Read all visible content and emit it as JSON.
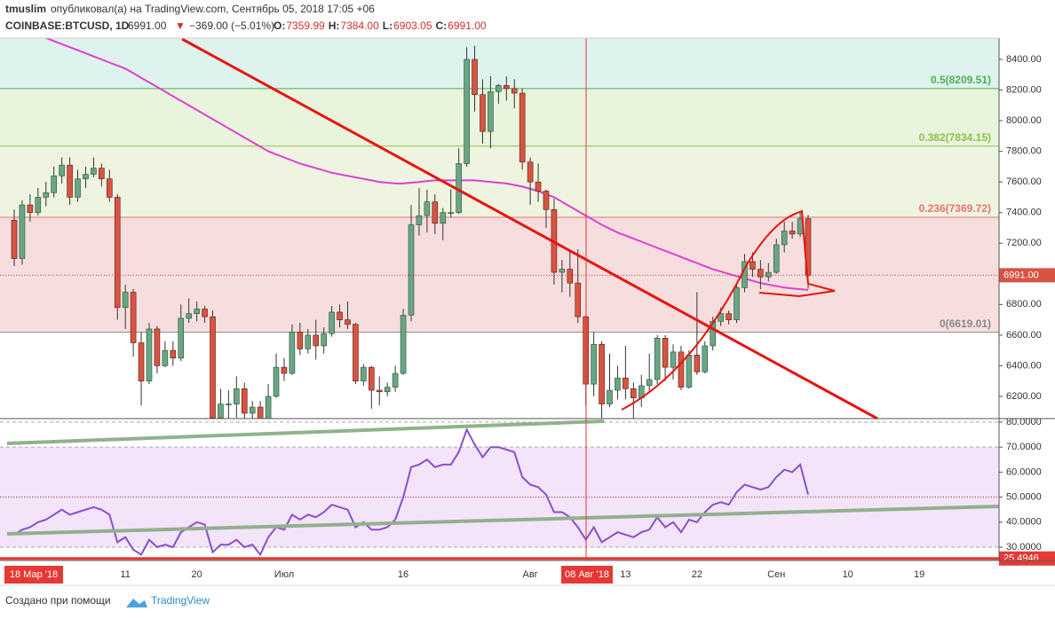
{
  "header": {
    "user": "tmuslim",
    "published": "опубликовал(а) на TradingView.com, Сентябрь 05, 2018 17:05 +06",
    "symbol": "COINBASE:BTCUSD, 1D",
    "last": "6991.00",
    "arrow": "▼",
    "change": "−369.00 (−5.01%)",
    "ohlc": [
      {
        "k": "O:",
        "v": "7359.99"
      },
      {
        "k": "H:",
        "v": "7384.00"
      },
      {
        "k": "L:",
        "v": "6903.05"
      },
      {
        "k": "C:",
        "v": "6991.00"
      }
    ]
  },
  "crosshair": {
    "left": "18 Мар '18",
    "date": "08 Авг '18"
  },
  "footer": {
    "text": "Создано при помощи",
    "brand": "TradingView"
  },
  "chart_data": [
    {
      "type": "candlestick",
      "up_color": "#6ba583",
      "down_color": "#d75442",
      "ma_color": "#e040d0",
      "ylim": [
        6055,
        8539
      ],
      "yticks": [
        {
          "value": 6200,
          "label": "6200.00"
        },
        {
          "value": 6400,
          "label": "6400.00"
        },
        {
          "value": 6600,
          "label": "6600.00"
        },
        {
          "value": 6800,
          "label": "6800.00"
        },
        {
          "value": 7000,
          "label": "7000.00"
        },
        {
          "value": 7200,
          "label": "7200.00"
        },
        {
          "value": 7400,
          "label": "7400.00"
        },
        {
          "value": 7600,
          "label": "7600.00"
        },
        {
          "value": 7800,
          "label": "7800.00"
        },
        {
          "value": 8000,
          "label": "8000.00"
        },
        {
          "value": 8200,
          "label": "8200.00"
        },
        {
          "value": 8400,
          "label": "8400.00"
        }
      ],
      "last_price": {
        "value": 6991,
        "label": "6991.00"
      },
      "fib": [
        {
          "value": 8209.51,
          "label": "0.5(8209.51)",
          "color": "#4caf50",
          "fill": "#e2f4e4"
        },
        {
          "value": 7834.15,
          "label": "0.382(7834.15)",
          "color": "#8bc34a",
          "fill": "#e9f4dc"
        },
        {
          "value": 7369.72,
          "label": "0.236(7369.72)",
          "color": "#e57373",
          "fill": "#eef4df"
        },
        {
          "value": 6619.01,
          "label": "0(6619.01)",
          "color": "#888888",
          "fill": "#f7dede"
        }
      ],
      "categories": [
        null,
        null,
        null,
        null,
        null,
        null,
        null,
        null,
        null,
        null,
        null,
        null,
        null,
        null,
        "11",
        null,
        null,
        null,
        null,
        null,
        null,
        null,
        null,
        "20",
        null,
        null,
        null,
        null,
        null,
        null,
        null,
        null,
        null,
        null,
        "Июл",
        null,
        null,
        null,
        null,
        null,
        null,
        null,
        null,
        null,
        null,
        null,
        null,
        null,
        null,
        "16",
        null,
        null,
        null,
        null,
        null,
        null,
        null,
        null,
        null,
        null,
        null,
        null,
        null,
        null,
        null,
        "Авг",
        null,
        null,
        null,
        null,
        null,
        null,
        null,
        null,
        null,
        null,
        null,
        "13",
        null,
        null,
        null,
        null,
        null,
        null,
        null,
        null,
        "22",
        null,
        null,
        null,
        null,
        null,
        null,
        null,
        null,
        null,
        "Сен",
        null,
        null,
        null,
        null,
        null,
        null,
        null,
        null,
        "10",
        null,
        null,
        null,
        null,
        null,
        null,
        null,
        null,
        "19",
        null,
        null,
        null,
        null,
        null,
        null,
        null,
        null,
        null
      ],
      "ohlc": [
        [
          7350,
          7420,
          7050,
          7100
        ],
        [
          7100,
          7480,
          7060,
          7450
        ],
        [
          7450,
          7520,
          7340,
          7400
        ],
        [
          7400,
          7560,
          7380,
          7500
        ],
        [
          7500,
          7600,
          7440,
          7530
        ],
        [
          7530,
          7700,
          7500,
          7640
        ],
        [
          7640,
          7760,
          7590,
          7710
        ],
        [
          7710,
          7760,
          7450,
          7500
        ],
        [
          7500,
          7680,
          7470,
          7620
        ],
        [
          7620,
          7700,
          7560,
          7650
        ],
        [
          7650,
          7760,
          7630,
          7690
        ],
        [
          7690,
          7720,
          7570,
          7620
        ],
        [
          7620,
          7680,
          7470,
          7500
        ],
        [
          7500,
          7520,
          6700,
          6780
        ],
        [
          6780,
          6930,
          6640,
          6880
        ],
        [
          6880,
          6900,
          6460,
          6550
        ],
        [
          6550,
          6620,
          6140,
          6300
        ],
        [
          6300,
          6680,
          6280,
          6640
        ],
        [
          6640,
          6660,
          6350,
          6400
        ],
        [
          6400,
          6560,
          6390,
          6500
        ],
        [
          6500,
          6560,
          6400,
          6450
        ],
        [
          6450,
          6800,
          6430,
          6710
        ],
        [
          6710,
          6840,
          6680,
          6740
        ],
        [
          6740,
          6820,
          6690,
          6770
        ],
        [
          6770,
          6790,
          6680,
          6720
        ],
        [
          6720,
          6760,
          5920,
          6060
        ],
        [
          6060,
          6250,
          6030,
          6150
        ],
        [
          6150,
          6240,
          5800,
          6150
        ],
        [
          6150,
          6330,
          6060,
          6250
        ],
        [
          6250,
          6290,
          6050,
          6090
        ],
        [
          6090,
          6170,
          5990,
          6130
        ],
        [
          6130,
          6170,
          5830,
          5880
        ],
        [
          5880,
          6280,
          5860,
          6200
        ],
        [
          6200,
          6480,
          6190,
          6390
        ],
        [
          6390,
          6450,
          6300,
          6350
        ],
        [
          6350,
          6670,
          6340,
          6620
        ],
        [
          6620,
          6680,
          6470,
          6510
        ],
        [
          6510,
          6640,
          6480,
          6600
        ],
        [
          6600,
          6700,
          6440,
          6530
        ],
        [
          6530,
          6650,
          6480,
          6610
        ],
        [
          6610,
          6790,
          6590,
          6750
        ],
        [
          6750,
          6800,
          6650,
          6700
        ],
        [
          6700,
          6820,
          6640,
          6670
        ],
        [
          6670,
          6680,
          6280,
          6300
        ],
        [
          6300,
          6410,
          6270,
          6390
        ],
        [
          6390,
          6400,
          6120,
          6240
        ],
        [
          6240,
          6330,
          6140,
          6230
        ],
        [
          6230,
          6290,
          6200,
          6260
        ],
        [
          6260,
          6400,
          6230,
          6350
        ],
        [
          6350,
          6770,
          6340,
          6730
        ],
        [
          6730,
          7450,
          6690,
          7320
        ],
        [
          7320,
          7560,
          7250,
          7380
        ],
        [
          7380,
          7550,
          7270,
          7470
        ],
        [
          7470,
          7520,
          7260,
          7330
        ],
        [
          7330,
          7430,
          7220,
          7400
        ],
        [
          7400,
          7550,
          7370,
          7400
        ],
        [
          7400,
          7820,
          7390,
          7720
        ],
        [
          7720,
          8480,
          7700,
          8400
        ],
        [
          8400,
          8490,
          8060,
          8170
        ],
        [
          8170,
          8270,
          7850,
          7930
        ],
        [
          7930,
          8290,
          7820,
          8190
        ],
        [
          8190,
          8240,
          8110,
          8230
        ],
        [
          8230,
          8290,
          8130,
          8210
        ],
        [
          8210,
          8270,
          8080,
          8180
        ],
        [
          8180,
          8210,
          7680,
          7730
        ],
        [
          7730,
          7760,
          7450,
          7600
        ],
        [
          7600,
          7720,
          7470,
          7540
        ],
        [
          7540,
          7550,
          7300,
          7420
        ],
        [
          7420,
          7490,
          6930,
          7010
        ],
        [
          7010,
          7090,
          6880,
          7030
        ],
        [
          7030,
          7150,
          6850,
          6940
        ],
        [
          6940,
          7160,
          6680,
          6720
        ],
        [
          6720,
          6730,
          6140,
          6280
        ],
        [
          6280,
          6620,
          6200,
          6540
        ],
        [
          6540,
          6560,
          6030,
          6150
        ],
        [
          6150,
          6480,
          6130,
          6240
        ],
        [
          6240,
          6400,
          6180,
          6320
        ],
        [
          6320,
          6530,
          6180,
          6250
        ],
        [
          6250,
          6290,
          5880,
          6190
        ],
        [
          6190,
          6340,
          6130,
          6270
        ],
        [
          6270,
          6480,
          6220,
          6310
        ],
        [
          6310,
          6600,
          6280,
          6580
        ],
        [
          6580,
          6600,
          6300,
          6390
        ],
        [
          6390,
          6540,
          6310,
          6490
        ],
        [
          6490,
          6530,
          6240,
          6260
        ],
        [
          6260,
          6500,
          6250,
          6470
        ],
        [
          6470,
          6880,
          6340,
          6360
        ],
        [
          6360,
          6560,
          6350,
          6530
        ],
        [
          6530,
          6720,
          6500,
          6690
        ],
        [
          6690,
          6780,
          6660,
          6740
        ],
        [
          6740,
          6760,
          6670,
          6700
        ],
        [
          6700,
          6940,
          6680,
          6910
        ],
        [
          6910,
          7130,
          6880,
          7080
        ],
        [
          7080,
          7140,
          6980,
          7030
        ],
        [
          7030,
          7090,
          6900,
          6980
        ],
        [
          6980,
          7070,
          6950,
          7010
        ],
        [
          7010,
          7230,
          7000,
          7190
        ],
        [
          7190,
          7340,
          7140,
          7280
        ],
        [
          7280,
          7340,
          7230,
          7260
        ],
        [
          7260,
          7410,
          7240,
          7360
        ],
        [
          7359.99,
          7384,
          6903.05,
          6991
        ],
        null,
        null,
        null,
        null,
        null,
        null,
        null,
        null,
        null,
        null,
        null,
        null,
        null,
        null,
        null,
        null,
        null,
        null,
        null,
        null,
        null,
        null,
        null
      ],
      "ma": [
        8620,
        8600,
        8580,
        8560,
        8540,
        8520,
        8500,
        8480,
        8460,
        8440,
        8420,
        8400,
        8380,
        8360,
        8340,
        8310,
        8280,
        8250,
        8220,
        8190,
        8160,
        8130,
        8100,
        8070,
        8040,
        8010,
        7980,
        7950,
        7920,
        7890,
        7860,
        7830,
        7800,
        7780,
        7760,
        7740,
        7720,
        7705,
        7690,
        7675,
        7660,
        7650,
        7640,
        7630,
        7620,
        7610,
        7600,
        7595,
        7590,
        7590,
        7595,
        7600,
        7605,
        7610,
        7610,
        7610,
        7610,
        7610,
        7610,
        7605,
        7600,
        7595,
        7590,
        7580,
        7570,
        7555,
        7540,
        7520,
        7500,
        7470,
        7440,
        7410,
        7380,
        7350,
        7320,
        7295,
        7270,
        7250,
        7230,
        7210,
        7190,
        7170,
        7150,
        7130,
        7110,
        7090,
        7070,
        7050,
        7030,
        7015,
        7000,
        6985,
        6970,
        6955,
        6940,
        6930,
        6920,
        6910,
        6905,
        6900,
        6895,
        null,
        null,
        null,
        null,
        null,
        null,
        null,
        null,
        null,
        null,
        null,
        null,
        null,
        null,
        null,
        null,
        null,
        null,
        null,
        null,
        null,
        null,
        null
      ]
    },
    {
      "type": "line",
      "color": "#8a4fc9",
      "ylim": [
        24.7,
        81.4
      ],
      "yticks": [
        {
          "value": 30,
          "label": "30.0000"
        },
        {
          "value": 40,
          "label": "40.0000"
        },
        {
          "value": 50,
          "label": "50.0000"
        },
        {
          "value": 60,
          "label": "60.0000"
        },
        {
          "value": 70,
          "label": "70.0000"
        },
        {
          "value": 80,
          "label": "80.0000"
        }
      ],
      "level": {
        "value": 25.4946,
        "label": "25.4946"
      },
      "values": [
        35,
        37,
        38,
        40,
        41,
        43,
        45,
        43,
        44,
        45,
        46,
        45,
        43,
        32,
        34,
        29,
        27,
        33,
        30,
        31,
        30,
        36,
        38,
        40,
        39,
        28,
        31,
        31,
        33,
        30,
        31,
        27,
        34,
        38,
        37,
        43,
        41,
        43,
        42,
        44,
        47,
        46,
        45,
        38,
        40,
        37,
        37,
        38,
        41,
        50,
        62,
        63,
        65,
        62,
        63,
        63,
        68,
        77,
        71,
        66,
        70,
        70,
        69,
        68,
        58,
        55,
        54,
        51,
        44,
        44,
        42,
        38,
        33,
        38,
        32,
        34,
        36,
        35,
        34,
        36,
        37,
        42,
        38,
        40,
        36,
        41,
        40,
        44,
        47,
        48,
        47,
        52,
        55,
        54,
        53,
        54,
        58,
        61,
        60,
        63,
        51,
        null,
        null,
        null,
        null,
        null,
        null,
        null,
        null,
        null,
        null,
        null,
        null,
        null,
        null,
        null,
        null,
        null,
        null,
        null,
        null,
        null,
        null,
        null
      ]
    }
  ]
}
